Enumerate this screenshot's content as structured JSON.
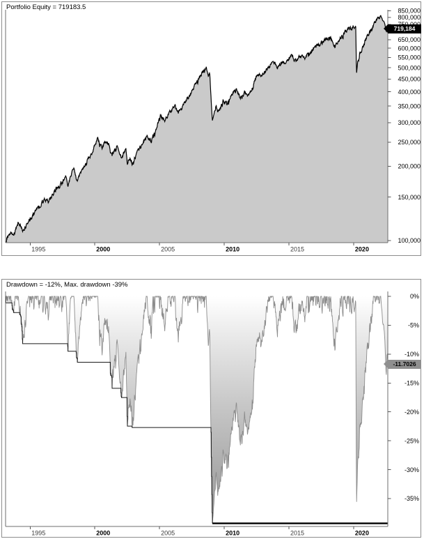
{
  "chart_data": [
    {
      "type": "area",
      "title": "Portfolio Equity = 719183.5",
      "series_name": "Portfolio Equity",
      "y_scale": "log",
      "final_equity": 719183.5,
      "badge": {
        "value": 719184,
        "label": "719,184",
        "color": "#000000",
        "text_color": "#ffffff"
      },
      "fill_color": "#cacaca",
      "line_color": "#000000",
      "x_range": [
        1993.1,
        2022.64
      ],
      "x_axis": {
        "ticks": [
          {
            "year": 1995,
            "label": "1995",
            "bold": false
          },
          {
            "year": 2000,
            "label": "2000",
            "bold": true
          },
          {
            "year": 2005,
            "label": "2005",
            "bold": false
          },
          {
            "year": 2010,
            "label": "2010",
            "bold": true
          },
          {
            "year": 2015,
            "label": "2015",
            "bold": false
          },
          {
            "year": 2020,
            "label": "2020",
            "bold": true
          }
        ]
      },
      "y_axis": {
        "side": "right",
        "ticks": [
          {
            "value": 850000,
            "label": "850,000"
          },
          {
            "value": 800000,
            "label": "800,000"
          },
          {
            "value": 750000,
            "label": "750,000"
          },
          {
            "value": 650000,
            "label": "650,000"
          },
          {
            "value": 600000,
            "label": "600,000"
          },
          {
            "value": 550000,
            "label": "550,000"
          },
          {
            "value": 500000,
            "label": "500,000"
          },
          {
            "value": 450000,
            "label": "450,000"
          },
          {
            "value": 400000,
            "label": "400,000"
          },
          {
            "value": 350000,
            "label": "350,000"
          },
          {
            "value": 300000,
            "label": "300,000"
          },
          {
            "value": 250000,
            "label": "250,000"
          },
          {
            "value": 200000,
            "label": "200,000"
          },
          {
            "value": 150000,
            "label": "150,000"
          },
          {
            "value": 100000,
            "label": "100,000"
          }
        ]
      },
      "series": [
        {
          "name": "Portfolio Equity",
          "anchors": [
            [
              1993.1,
              100000
            ],
            [
              1993.45,
              109000
            ],
            [
              1993.7,
              106000
            ],
            [
              1994.1,
              121000
            ],
            [
              1994.45,
              111500
            ],
            [
              1994.8,
              119000
            ],
            [
              1995.25,
              128000
            ],
            [
              1995.7,
              136500
            ],
            [
              1996.1,
              150000
            ],
            [
              1996.45,
              144000
            ],
            [
              1996.9,
              158000
            ],
            [
              1997.4,
              172000
            ],
            [
              1997.75,
              186000
            ],
            [
              1997.95,
              171500
            ],
            [
              1998.35,
              196000
            ],
            [
              1998.62,
              172000
            ],
            [
              1999.0,
              192000
            ],
            [
              1999.4,
              208000
            ],
            [
              1999.8,
              230000
            ],
            [
              2000.1,
              252000
            ],
            [
              2000.25,
              262000
            ],
            [
              2000.55,
              238000
            ],
            [
              2000.85,
              252000
            ],
            [
              2001.05,
              244000
            ],
            [
              2001.3,
              221000
            ],
            [
              2001.7,
              240000
            ],
            [
              2002.05,
              218500
            ],
            [
              2002.4,
              236000
            ],
            [
              2002.5,
              204000
            ],
            [
              2002.75,
              216000
            ],
            [
              2002.95,
              206000
            ],
            [
              2003.3,
              228000
            ],
            [
              2003.7,
              248000
            ],
            [
              2004.05,
              264000
            ],
            [
              2004.35,
              256000
            ],
            [
              2004.7,
              278000
            ],
            [
              2005.05,
              318000
            ],
            [
              2005.35,
              305000
            ],
            [
              2005.8,
              332000
            ],
            [
              2006.2,
              348000
            ],
            [
              2006.45,
              332000
            ],
            [
              2006.9,
              358000
            ],
            [
              2007.3,
              382000
            ],
            [
              2007.7,
              420000
            ],
            [
              2008.0,
              448000
            ],
            [
              2008.3,
              476000
            ],
            [
              2008.6,
              500000
            ],
            [
              2008.75,
              458000
            ],
            [
              2008.88,
              470000
            ],
            [
              2009.08,
              305000
            ],
            [
              2009.35,
              350000
            ],
            [
              2009.6,
              335000
            ],
            [
              2009.95,
              368000
            ],
            [
              2010.25,
              355000
            ],
            [
              2010.6,
              390000
            ],
            [
              2010.95,
              405000
            ],
            [
              2011.25,
              375000
            ],
            [
              2011.55,
              398000
            ],
            [
              2011.8,
              380000
            ],
            [
              2012.1,
              415000
            ],
            [
              2012.4,
              445000
            ],
            [
              2012.65,
              475000
            ],
            [
              2012.9,
              458000
            ],
            [
              2013.2,
              490000
            ],
            [
              2013.5,
              508000
            ],
            [
              2013.8,
              522000
            ],
            [
              2014.1,
              509000
            ],
            [
              2014.5,
              535000
            ],
            [
              2014.8,
              524000
            ],
            [
              2015.2,
              556000
            ],
            [
              2015.55,
              530000
            ],
            [
              2015.9,
              560000
            ],
            [
              2016.2,
              542000
            ],
            [
              2016.6,
              575000
            ],
            [
              2017.0,
              600000
            ],
            [
              2017.4,
              625000
            ],
            [
              2017.8,
              645000
            ],
            [
              2018.2,
              662000
            ],
            [
              2018.55,
              602000
            ],
            [
              2018.9,
              655000
            ],
            [
              2019.3,
              695000
            ],
            [
              2019.7,
              726000
            ],
            [
              2020.0,
              741000
            ],
            [
              2020.16,
              750000
            ],
            [
              2020.22,
              473000
            ],
            [
              2020.3,
              521000
            ],
            [
              2020.42,
              556000
            ],
            [
              2020.75,
              612000
            ],
            [
              2021.0,
              658000
            ],
            [
              2021.3,
              704000
            ],
            [
              2021.6,
              752000
            ],
            [
              2021.9,
              799000
            ],
            [
              2022.1,
              814500
            ],
            [
              2022.4,
              756000
            ],
            [
              2022.52,
              700000
            ],
            [
              2022.58,
              736000
            ],
            [
              2022.64,
              719184
            ]
          ]
        }
      ]
    },
    {
      "type": "area",
      "title": "Drawdown = -12%, Max. drawdown -39%",
      "series_name": "Drawdown",
      "derived": "drawdown_from_equity_running_peak",
      "current_drawdown_pct": -12,
      "max_drawdown_pct": -39,
      "badge": {
        "value": -11.7026,
        "label": "-11.7026",
        "color": "#8f8f8f",
        "text_color": "#000000"
      },
      "line_color": "#8c8c8c",
      "fill_gradient": [
        "#ffffff",
        "#ececec",
        "#c4c4c4",
        "#939393"
      ],
      "staircase_line_color": "#1a1a1a",
      "max_drawdown_line_color": "#000000",
      "x_axis": {
        "ticks": [
          {
            "year": 1995,
            "label": "1995",
            "bold": false
          },
          {
            "year": 2000,
            "label": "2000",
            "bold": true
          },
          {
            "year": 2005,
            "label": "2005",
            "bold": false
          },
          {
            "year": 2010,
            "label": "2010",
            "bold": true
          },
          {
            "year": 2015,
            "label": "2015",
            "bold": false
          },
          {
            "year": 2020,
            "label": "2020",
            "bold": true
          }
        ]
      },
      "y_axis": {
        "side": "right",
        "ticks": [
          {
            "value": 0,
            "label": "0%"
          },
          {
            "value": -5,
            "label": "-5%"
          },
          {
            "value": -10,
            "label": "-10%"
          },
          {
            "value": -15,
            "label": "-15%"
          },
          {
            "value": -20,
            "label": "-20%"
          },
          {
            "value": -25,
            "label": "-25%"
          },
          {
            "value": -30,
            "label": "-30%"
          },
          {
            "value": -35,
            "label": "-35%"
          }
        ]
      }
    }
  ]
}
